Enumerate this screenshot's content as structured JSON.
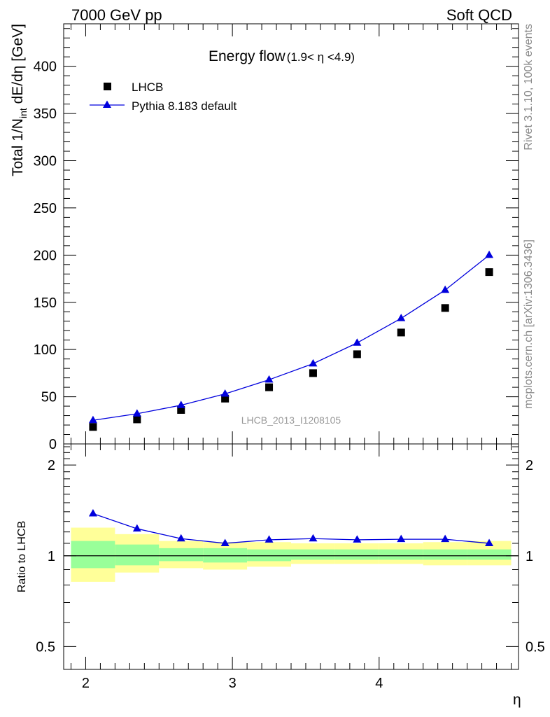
{
  "header": {
    "left": "7000 GeV pp",
    "right": "Soft QCD"
  },
  "side": {
    "rivet": "Rivet 3.1.10,  100k events",
    "mcplots": "mcplots.cern.ch [arXiv:1306.3436]"
  },
  "watermark": "LHCB_2013_I1208105",
  "chart_data": [
    {
      "type": "scatter",
      "title": "Energy flow",
      "title_sub": "(1.9< η <4.9)",
      "ylabel_main": "Total 1/N",
      "ylabel_sub": "int",
      "ylabel_rest": " dE/dη [GeV]",
      "xlim": [
        1.85,
        4.95
      ],
      "ylim": [
        0,
        445
      ],
      "yticks": [
        0,
        50,
        100,
        150,
        200,
        250,
        300,
        350,
        400
      ],
      "ytick_labels": [
        "0",
        "50",
        "100",
        "150",
        "200",
        "250",
        "300",
        "350",
        "400"
      ],
      "legend_placement": "top-left",
      "series": [
        {
          "name": "LHCB",
          "marker": "square",
          "color": "#000000",
          "x": [
            2.05,
            2.35,
            2.65,
            2.95,
            3.25,
            3.55,
            3.85,
            4.15,
            4.45,
            4.75
          ],
          "y": [
            18,
            26,
            36,
            48,
            60,
            75,
            95,
            118,
            144,
            182
          ]
        },
        {
          "name": "Pythia 8.183 default",
          "marker": "triangle",
          "line": true,
          "color": "#0000dd",
          "x": [
            2.05,
            2.35,
            2.65,
            2.95,
            3.25,
            3.55,
            3.85,
            4.15,
            4.45,
            4.75
          ],
          "y": [
            25,
            32,
            41,
            53,
            68,
            85,
            107,
            133,
            163,
            200
          ]
        }
      ]
    },
    {
      "type": "line",
      "ylabel": "Ratio to LHCB",
      "xlabel": "η",
      "log_y": true,
      "xlim": [
        1.85,
        4.95
      ],
      "ylim": [
        0.42,
        2.35
      ],
      "xticks": [
        2,
        3,
        4
      ],
      "xtick_labels": [
        "2",
        "3",
        "4"
      ],
      "yticks": [
        0.5,
        1,
        2
      ],
      "ytick_labels": [
        "0.5",
        "1",
        "2"
      ],
      "reference_line": 1,
      "bands": [
        {
          "x0": 1.9,
          "x1": 2.2,
          "inner": [
            0.91,
            1.12
          ],
          "outer": [
            0.82,
            1.24
          ]
        },
        {
          "x0": 2.2,
          "x1": 2.5,
          "inner": [
            0.93,
            1.09
          ],
          "outer": [
            0.88,
            1.18
          ]
        },
        {
          "x0": 2.5,
          "x1": 2.8,
          "inner": [
            0.96,
            1.06
          ],
          "outer": [
            0.91,
            1.12
          ]
        },
        {
          "x0": 2.8,
          "x1": 3.1,
          "inner": [
            0.95,
            1.06
          ],
          "outer": [
            0.9,
            1.11
          ]
        },
        {
          "x0": 3.1,
          "x1": 3.4,
          "inner": [
            0.96,
            1.05
          ],
          "outer": [
            0.92,
            1.11
          ]
        },
        {
          "x0": 3.4,
          "x1": 3.7,
          "inner": [
            0.97,
            1.05
          ],
          "outer": [
            0.94,
            1.1
          ]
        },
        {
          "x0": 3.7,
          "x1": 4.0,
          "inner": [
            0.97,
            1.05
          ],
          "outer": [
            0.94,
            1.1
          ]
        },
        {
          "x0": 4.0,
          "x1": 4.3,
          "inner": [
            0.97,
            1.05
          ],
          "outer": [
            0.94,
            1.1
          ]
        },
        {
          "x0": 4.3,
          "x1": 4.6,
          "inner": [
            0.97,
            1.05
          ],
          "outer": [
            0.93,
            1.11
          ]
        },
        {
          "x0": 4.6,
          "x1": 4.9,
          "inner": [
            0.97,
            1.05
          ],
          "outer": [
            0.93,
            1.12
          ]
        }
      ],
      "series": [
        {
          "name": "Pythia 8.183 default",
          "marker": "triangle",
          "color": "#0000dd",
          "x": [
            2.05,
            2.35,
            2.65,
            2.95,
            3.25,
            3.55,
            3.85,
            4.15,
            4.45,
            4.75
          ],
          "y": [
            1.38,
            1.23,
            1.14,
            1.1,
            1.13,
            1.14,
            1.13,
            1.135,
            1.135,
            1.1
          ]
        }
      ]
    }
  ],
  "colors": {
    "band_inner": "#99ff99",
    "band_outer": "#ffff99",
    "axis": "#000000",
    "side_text": "#888888"
  }
}
